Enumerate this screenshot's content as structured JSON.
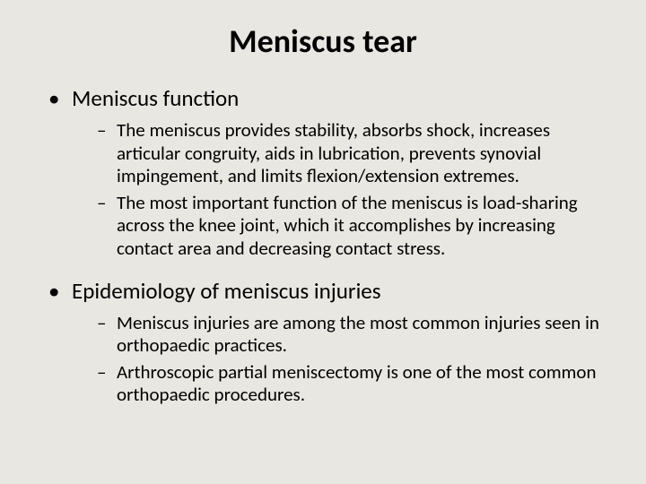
{
  "background_color": "#e9e7e2",
  "text_color": "#000000",
  "font_family": "Calibri",
  "title": {
    "text": "Meniscus tear",
    "fontsize": 36,
    "weight": 700,
    "align": "center"
  },
  "bullets": [
    {
      "text": "Meniscus function",
      "fontsize": 25,
      "marker": "•",
      "sub": [
        {
          "text": "The meniscus provides stability, absorbs shock, increases articular congruity, aids in lubrication, prevents synovial impingement, and limits flexion/extension extremes.",
          "fontsize": 21,
          "marker": "–"
        },
        {
          "text": "The most important function of the meniscus is load-sharing across the knee joint, which it accomplishes by increasing contact area and decreasing contact stress.",
          "fontsize": 21,
          "marker": "–"
        }
      ]
    },
    {
      "text": "Epidemiology of meniscus injuries",
      "fontsize": 25,
      "marker": "•",
      "sub": [
        {
          "text": "Meniscus injuries are among the most common injuries seen in orthopaedic practices.",
          "fontsize": 21,
          "marker": "–"
        },
        {
          "text": "Arthroscopic partial meniscectomy is one of the most common orthopaedic procedures.",
          "fontsize": 21,
          "marker": "–"
        }
      ]
    }
  ]
}
